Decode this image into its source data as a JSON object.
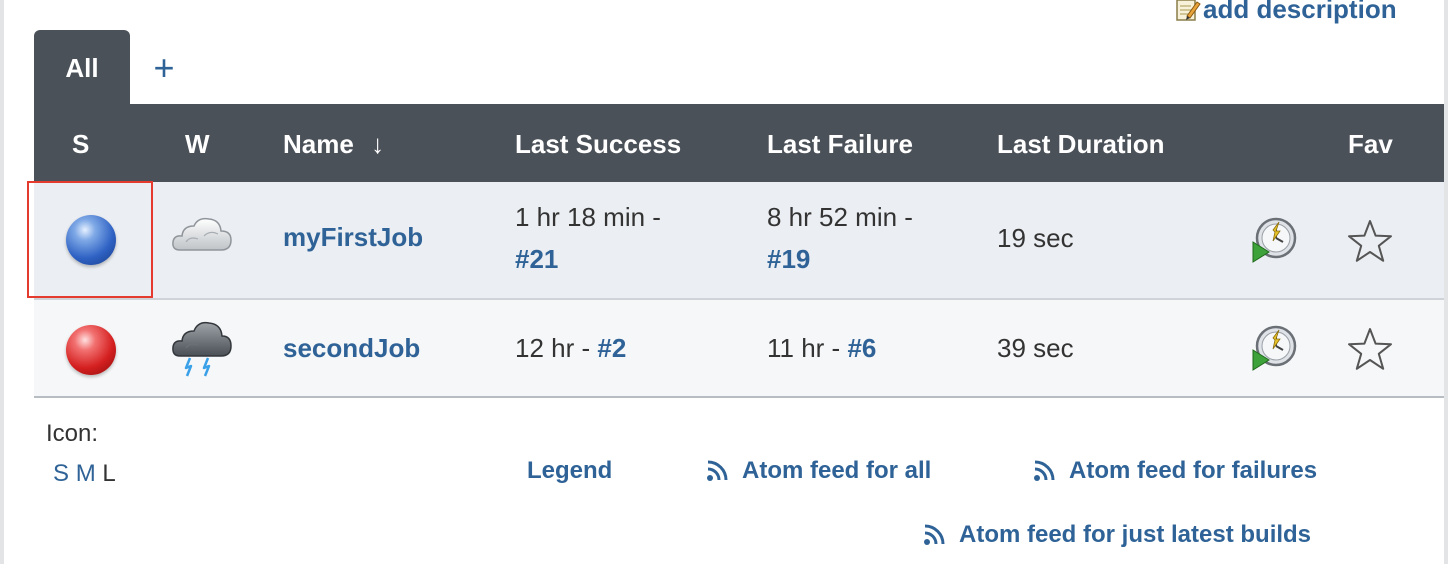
{
  "header_actions": {
    "add_description": "add description"
  },
  "tabs": [
    {
      "label": "All",
      "active": true
    }
  ],
  "add_tab_label": "+",
  "columns": {
    "status": "S",
    "weather": "W",
    "name": "Name",
    "name_sort_arrow": "↓",
    "last_success": "Last Success",
    "last_failure": "Last Failure",
    "last_duration": "Last Duration",
    "fav": "Fav"
  },
  "jobs": [
    {
      "status": "blue",
      "weather": "cloudy",
      "name": "myFirstJob",
      "last_success_time": "1 hr 18 min -",
      "last_success_build": "#21",
      "last_failure_time": "8 hr 52 min -",
      "last_failure_build": "#19",
      "last_duration": "19 sec"
    },
    {
      "status": "red",
      "weather": "thunderstorm",
      "name": "secondJob",
      "last_success_time": "12 hr -",
      "last_success_build": "#2",
      "last_failure_time": "11 hr -",
      "last_failure_build": "#6",
      "last_duration": "39 sec"
    }
  ],
  "footer": {
    "icon_label": "Icon:",
    "sizes": [
      "S",
      "M",
      "L"
    ],
    "legend": "Legend",
    "feed_all": "Atom feed for all",
    "feed_failures": "Atom feed for failures",
    "feed_latest": "Atom feed for just latest builds"
  },
  "colors": {
    "header_bg": "#4b5159",
    "link": "#2f6397",
    "row_alt_bg": "#ebeef2",
    "highlight_border": "#e53b2f"
  },
  "icons": [
    "pencil-icon",
    "status-ball-blue-icon",
    "status-ball-red-icon",
    "cloudy-icon",
    "thunderstorm-icon",
    "schedule-build-icon",
    "star-icon",
    "rss-icon"
  ]
}
